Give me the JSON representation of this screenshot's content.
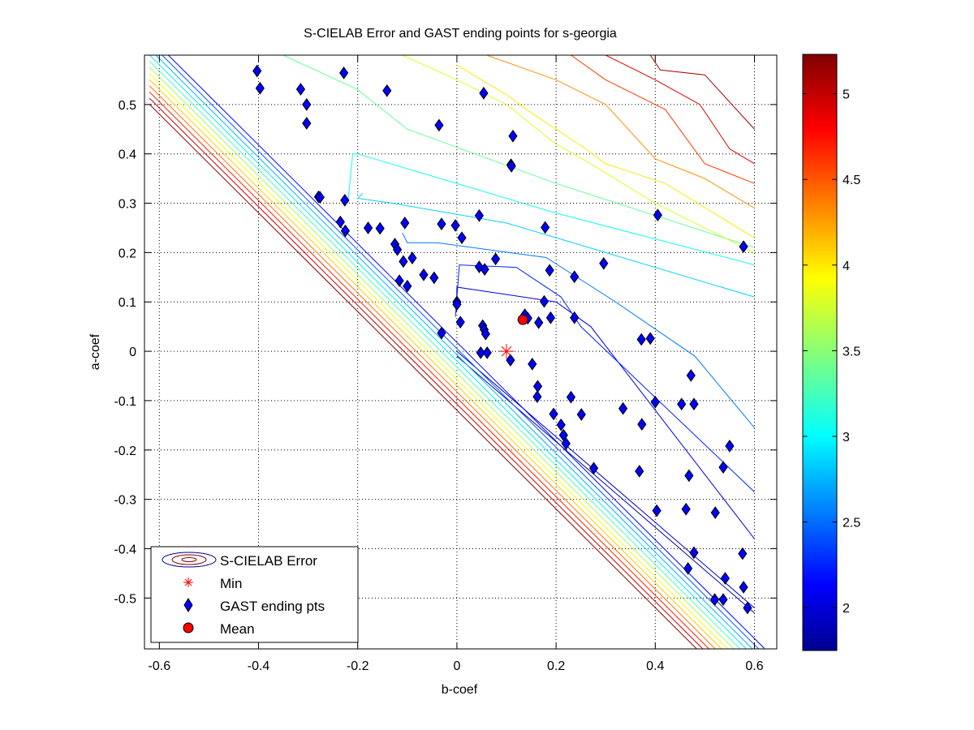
{
  "chart_data": {
    "type": "scatter",
    "title": "S-CIELAB Error and GAST ending points for s-georgia",
    "xlabel": "b-coef",
    "ylabel": "a-coef",
    "xlim": [
      -0.63,
      0.645
    ],
    "ylim": [
      -0.603,
      0.6
    ],
    "xticks": [
      -0.6,
      -0.4,
      -0.2,
      0,
      0.2,
      0.4,
      0.6
    ],
    "xtick_labels": [
      "-0.6",
      "-0.4",
      "-0.2",
      "0",
      "0.2",
      "0.4",
      "0.6"
    ],
    "yticks": [
      -0.5,
      -0.4,
      -0.3,
      -0.2,
      -0.1,
      0,
      0.1,
      0.2,
      0.3,
      0.4,
      0.5
    ],
    "ytick_labels": [
      "-0.5",
      "-0.4",
      "-0.3",
      "-0.2",
      "-0.1",
      "0",
      "0.1",
      "0.2",
      "0.3",
      "0.4",
      "0.5"
    ],
    "grid": true,
    "colorbar": {
      "range": [
        1.75,
        5.23
      ],
      "ticks": [
        2,
        2.5,
        3,
        3.5,
        4,
        4.5,
        5
      ],
      "tick_labels": [
        "2",
        "2.5",
        "3",
        "3.5",
        "4",
        "4.5",
        "5"
      ],
      "colormap": "jet"
    },
    "legend": {
      "position": "bottom-left",
      "entries": [
        "S-CIELAB Error",
        "Min",
        "GAST ending pts",
        "Mean"
      ]
    },
    "contour": {
      "name": "S-CIELAB Error",
      "levels": [
        {
          "value": 1.9,
          "points": [
            [
              0.0,
              -0.01
            ],
            [
              0.6,
              -0.53
            ]
          ]
        },
        {
          "value": 2.0,
          "points": [
            [
              0.0,
              0.0
            ],
            [
              0.6,
              -0.52
            ]
          ]
        },
        {
          "value": 2.1,
          "points": [
            [
              -0.001,
              0.08
            ],
            [
              0.0,
              0.13
            ],
            [
              0.2,
              0.1
            ],
            [
              0.27,
              0.05
            ],
            [
              0.6,
              -0.38
            ]
          ]
        },
        {
          "value": 2.3,
          "points": [
            [
              -0.003,
              0.07
            ],
            [
              0.005,
              0.175
            ],
            [
              0.12,
              0.17
            ],
            [
              0.21,
              0.11
            ],
            [
              0.25,
              0.05
            ],
            [
              0.6,
              -0.285
            ]
          ]
        },
        {
          "value": 2.6,
          "points": [
            [
              -0.11,
              0.24
            ],
            [
              -0.1,
              0.22
            ],
            [
              -0.04,
              0.22
            ],
            [
              0.18,
              0.19
            ],
            [
              0.32,
              0.1
            ],
            [
              0.48,
              -0.01
            ],
            [
              0.6,
              -0.155
            ]
          ]
        },
        {
          "value": 2.9,
          "points": [
            [
              -0.19,
              0.32
            ],
            [
              -0.2,
              0.31
            ],
            [
              -0.13,
              0.3
            ],
            [
              0.1,
              0.26
            ],
            [
              0.3,
              0.2
            ],
            [
              0.6,
              0.11
            ]
          ]
        },
        {
          "value": 3.1,
          "points": [
            [
              -0.22,
              0.3
            ],
            [
              -0.21,
              0.4
            ],
            [
              -0.2,
              0.4
            ],
            [
              -0.1,
              0.37
            ],
            [
              0.2,
              0.28
            ],
            [
              0.6,
              0.175
            ]
          ]
        },
        {
          "value": 3.4,
          "points": [
            [
              -0.35,
              0.6
            ],
            [
              -0.2,
              0.53
            ],
            [
              -0.1,
              0.45
            ],
            [
              0.2,
              0.34
            ],
            [
              0.6,
              0.21
            ]
          ]
        },
        {
          "value": 3.8,
          "points": [
            [
              -0.11,
              0.6
            ],
            [
              0.0,
              0.55
            ],
            [
              0.1,
              0.5
            ],
            [
              0.2,
              0.42
            ],
            [
              0.27,
              0.38
            ],
            [
              0.4,
              0.3
            ],
            [
              0.6,
              0.2
            ]
          ]
        },
        {
          "value": 4.0,
          "points": [
            [
              0.0,
              0.58
            ],
            [
              0.1,
              0.52
            ],
            [
              0.14,
              0.49
            ],
            [
              0.26,
              0.41
            ],
            [
              0.3,
              0.38
            ],
            [
              0.42,
              0.34
            ],
            [
              0.6,
              0.23
            ]
          ]
        },
        {
          "value": 4.3,
          "points": [
            [
              0.06,
              0.6
            ],
            [
              0.2,
              0.55
            ],
            [
              0.3,
              0.5
            ],
            [
              0.4,
              0.39
            ],
            [
              0.5,
              0.35
            ],
            [
              0.6,
              0.29
            ]
          ]
        },
        {
          "value": 4.6,
          "points": [
            [
              0.23,
              0.6
            ],
            [
              0.3,
              0.55
            ],
            [
              0.42,
              0.49
            ],
            [
              0.5,
              0.38
            ],
            [
              0.6,
              0.34
            ]
          ]
        },
        {
          "value": 4.9,
          "points": [
            [
              0.3,
              0.6
            ],
            [
              0.4,
              0.55
            ],
            [
              0.49,
              0.5
            ],
            [
              0.55,
              0.41
            ],
            [
              0.6,
              0.38
            ]
          ]
        },
        {
          "value": 5.1,
          "points": [
            [
              0.39,
              0.6
            ],
            [
              0.41,
              0.57
            ],
            [
              0.5,
              0.56
            ],
            [
              0.6,
              0.45
            ]
          ]
        }
      ],
      "diagonal_band": {
        "values": [
          2.2,
          2.5,
          2.8,
          3.0,
          3.3,
          3.6,
          3.9,
          4.1,
          4.4,
          4.7,
          5.0,
          5.2
        ],
        "note": "closely spaced contour lines along a + b = 0 edge"
      }
    },
    "series": [
      {
        "name": "GAST ending pts",
        "marker": "diamond",
        "color": "#0000ff",
        "points": [
          [
            -0.403,
            0.568
          ],
          [
            -0.397,
            0.533
          ],
          [
            -0.315,
            0.531
          ],
          [
            -0.303,
            0.5
          ],
          [
            -0.303,
            0.462
          ],
          [
            -0.228,
            0.564
          ],
          [
            -0.141,
            0.528
          ],
          [
            -0.036,
            0.458
          ],
          [
            0.054,
            0.523
          ],
          [
            0.113,
            0.436
          ],
          [
            0.109,
            0.378
          ],
          [
            0.11,
            0.375
          ],
          [
            -0.279,
            0.313
          ],
          [
            -0.276,
            0.312
          ],
          [
            -0.226,
            0.306
          ],
          [
            -0.235,
            0.262
          ],
          [
            -0.225,
            0.244
          ],
          [
            -0.179,
            0.25
          ],
          [
            -0.155,
            0.249
          ],
          [
            -0.125,
            0.217
          ],
          [
            -0.12,
            0.206
          ],
          [
            -0.105,
            0.26
          ],
          [
            -0.108,
            0.182
          ],
          [
            -0.09,
            0.189
          ],
          [
            -0.1,
            0.132
          ],
          [
            -0.116,
            0.143
          ],
          [
            -0.067,
            0.155
          ],
          [
            -0.046,
            0.149
          ],
          [
            -0.031,
            0.258
          ],
          [
            -0.003,
            0.255
          ],
          [
            0.01,
            0.23
          ],
          [
            0.045,
            0.275
          ],
          [
            0.045,
            0.171
          ],
          [
            0.056,
            0.166
          ],
          [
            0.078,
            0.187
          ],
          [
            0.178,
            0.251
          ],
          [
            0.187,
            0.164
          ],
          [
            0.237,
            0.151
          ],
          [
            0.296,
            0.178
          ],
          [
            0.405,
            0.276
          ],
          [
            0.578,
            0.212
          ],
          [
            -0.031,
            0.037
          ],
          [
            0.0,
            0.1
          ],
          [
            0.0,
            0.095
          ],
          [
            0.007,
            0.059
          ],
          [
            0.052,
            0.052
          ],
          [
            0.055,
            0.044
          ],
          [
            0.058,
            0.035
          ],
          [
            0.048,
            -0.003
          ],
          [
            0.061,
            -0.003
          ],
          [
            0.137,
            0.074
          ],
          [
            0.143,
            0.067
          ],
          [
            0.165,
            0.058
          ],
          [
            0.176,
            0.101
          ],
          [
            0.189,
            0.068
          ],
          [
            0.237,
            0.068
          ],
          [
            0.108,
            -0.018
          ],
          [
            0.152,
            -0.026
          ],
          [
            0.163,
            -0.071
          ],
          [
            0.162,
            -0.092
          ],
          [
            0.195,
            -0.127
          ],
          [
            0.23,
            -0.093
          ],
          [
            0.21,
            -0.149
          ],
          [
            0.215,
            -0.17
          ],
          [
            0.22,
            -0.187
          ],
          [
            0.251,
            -0.128
          ],
          [
            0.276,
            -0.237
          ],
          [
            0.335,
            -0.116
          ],
          [
            0.373,
            -0.148
          ],
          [
            0.368,
            -0.243
          ],
          [
            0.372,
            0.024
          ],
          [
            0.39,
            0.026
          ],
          [
            0.4,
            -0.103
          ],
          [
            0.403,
            -0.323
          ],
          [
            0.453,
            -0.107
          ],
          [
            0.468,
            -0.252
          ],
          [
            0.472,
            -0.049
          ],
          [
            0.478,
            -0.107
          ],
          [
            0.462,
            -0.32
          ],
          [
            0.466,
            -0.44
          ],
          [
            0.478,
            -0.408
          ],
          [
            0.521,
            -0.327
          ],
          [
            0.537,
            -0.235
          ],
          [
            0.55,
            -0.192
          ],
          [
            0.541,
            -0.46
          ],
          [
            0.52,
            -0.503
          ],
          [
            0.537,
            -0.503
          ],
          [
            0.576,
            -0.41
          ],
          [
            0.578,
            -0.478
          ],
          [
            0.586,
            -0.52
          ]
        ]
      },
      {
        "name": "Min",
        "marker": "asterisk",
        "color": "#ff0000",
        "points": [
          [
            0.1,
            0.0
          ]
        ]
      },
      {
        "name": "Mean",
        "marker": "circle",
        "color": "#ff0000",
        "points": [
          [
            0.133,
            0.064
          ]
        ]
      }
    ]
  }
}
